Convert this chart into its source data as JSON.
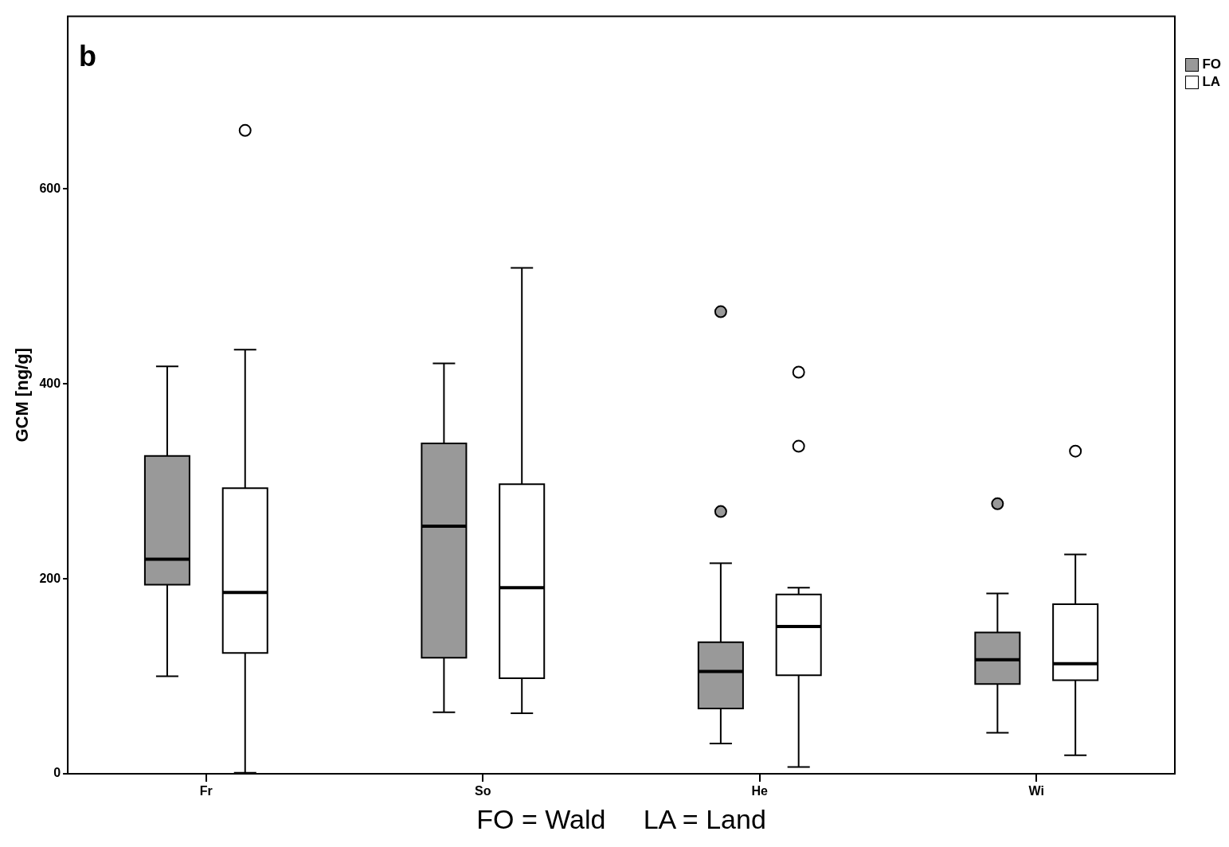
{
  "chart_data": {
    "type": "box",
    "ylabel": "GCM [ng/g]",
    "xlabel": "FO = Wald     LA = Land",
    "annotations": [
      "b"
    ],
    "categories": [
      "Fr",
      "So",
      "He",
      "Wi"
    ],
    "ylim": [
      0,
      777
    ],
    "yticks": [
      0,
      200,
      400,
      600
    ],
    "legend": "top right",
    "marker": "circle",
    "series": [
      {
        "name": "FO",
        "color": "#999999",
        "boxes": [
          {
            "low": 100,
            "q1": 194,
            "median": 220,
            "q3": 326,
            "high": 418
          },
          {
            "low": 63,
            "q1": 119,
            "median": 254,
            "q3": 339,
            "high": 421
          },
          {
            "low": 31,
            "q1": 67,
            "median": 105,
            "q3": 135,
            "high": 216,
            "outliers": [
              269,
              474
            ]
          },
          {
            "low": 42,
            "q1": 92,
            "median": 117,
            "q3": 145,
            "high": 185,
            "outliers": [
              277
            ]
          }
        ]
      },
      {
        "name": "LA",
        "color": "#ffffff",
        "boxes": [
          {
            "low": 1,
            "q1": 124,
            "median": 186,
            "q3": 293,
            "high": 435,
            "outliers": [
              660
            ]
          },
          {
            "low": 62,
            "q1": 98,
            "median": 191,
            "q3": 297,
            "high": 519
          },
          {
            "low": 7,
            "q1": 101,
            "median": 151,
            "q3": 184,
            "high": 191,
            "outliers": [
              336,
              412
            ]
          },
          {
            "low": 19,
            "q1": 96,
            "median": 113,
            "q3": 174,
            "high": 225,
            "outliers": [
              331
            ]
          }
        ]
      }
    ]
  }
}
